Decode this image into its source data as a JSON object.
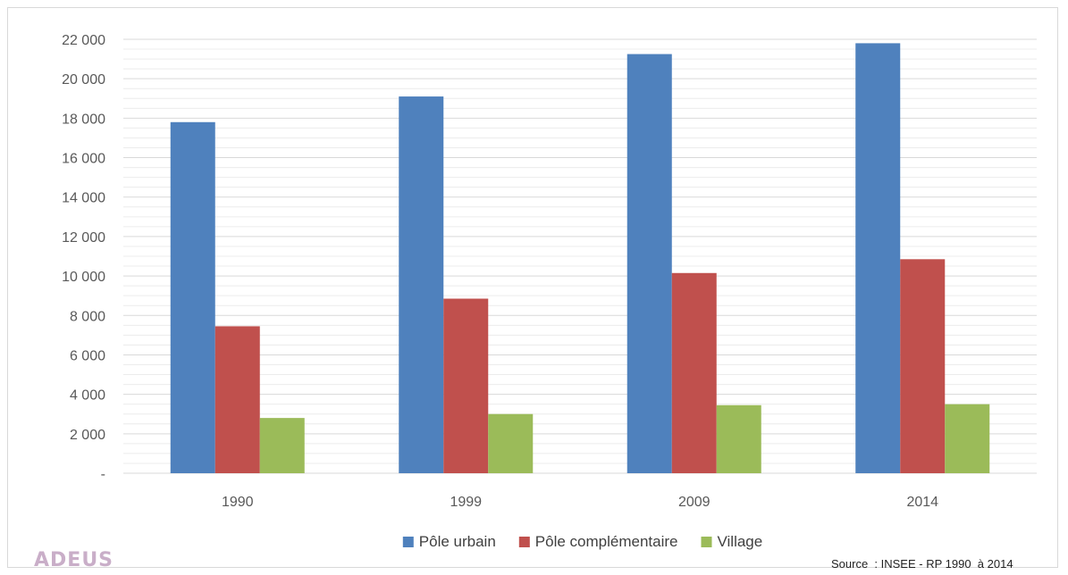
{
  "chart_data": {
    "type": "bar",
    "categories": [
      "1990",
      "1999",
      "2009",
      "2014"
    ],
    "series": [
      {
        "name": "Pôle urbain",
        "color": "#4f81bd",
        "values": [
          17800,
          19100,
          21250,
          21800
        ]
      },
      {
        "name": "Pôle complémentaire",
        "color": "#c0504d",
        "values": [
          7450,
          8850,
          10150,
          10850
        ]
      },
      {
        "name": "Village",
        "color": "#9bbb59",
        "values": [
          2800,
          3000,
          3450,
          3500
        ]
      }
    ],
    "ylim": [
      0,
      22000
    ],
    "y_ticks": [
      0,
      2000,
      4000,
      6000,
      8000,
      10000,
      12000,
      14000,
      16000,
      18000,
      20000,
      22000
    ],
    "y_tick_labels": [
      "-",
      "2 000",
      "4 000",
      "6 000",
      "8 000",
      "10 000",
      "12 000",
      "14 000",
      "16 000",
      "18 000",
      "20 000",
      "22 000"
    ],
    "grid": true,
    "legend_position": "bottom",
    "source": "Source  : INSEE - RP 1990  à 2014",
    "logo_text": "ADEUS"
  }
}
